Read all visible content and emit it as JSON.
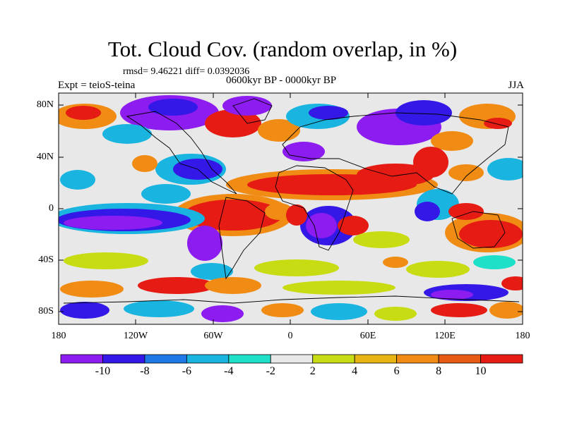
{
  "header": {
    "title": "Tot. Cloud Cov. (random overlap, in %)",
    "stats": "rmsd= 9.46221 diff= 0.0392036",
    "period": "0600kyr BP - 0000kyr BP",
    "experiment": "Expt = teioS-teina",
    "season": "JJA"
  },
  "map": {
    "projection": "cylindrical equidistant",
    "lat_ticks": [
      "80N",
      "40N",
      "0",
      "40S",
      "80S"
    ],
    "lon_ticks": [
      "180",
      "120W",
      "60W",
      "0",
      "60E",
      "120E",
      "180"
    ]
  },
  "colorbar": {
    "labels": [
      "-10",
      "-8",
      "-6",
      "-4",
      "-2",
      "2",
      "4",
      "6",
      "8",
      "10"
    ],
    "colors": [
      "#8c1cf0",
      "#3418e8",
      "#1e78e6",
      "#1ab4e0",
      "#1ee0c8",
      "#e8e8e8",
      "#c8dc14",
      "#e8b414",
      "#f08c14",
      "#e65a14",
      "#e61c14"
    ]
  }
}
